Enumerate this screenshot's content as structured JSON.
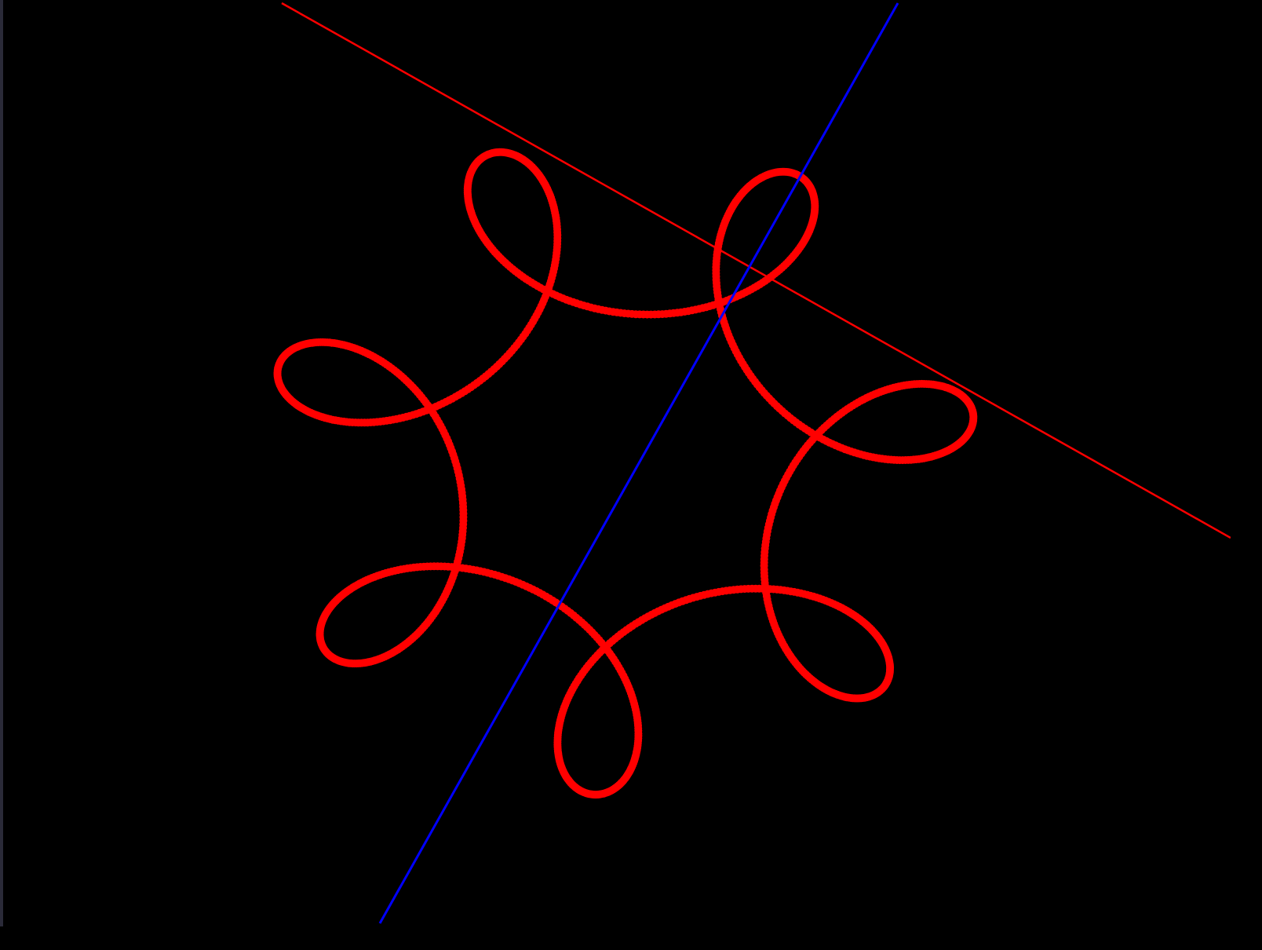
{
  "scene": {
    "background_color": "#000000",
    "frame_color": "#23232e"
  },
  "curve": {
    "type": "looped rosette (dotted points)",
    "color": "#ff0000",
    "sample_count": 1400
  },
  "axes": [
    {
      "name": "red-axis",
      "color": "#ff0000"
    },
    {
      "name": "blue-axis",
      "color": "#0000ff"
    }
  ]
}
